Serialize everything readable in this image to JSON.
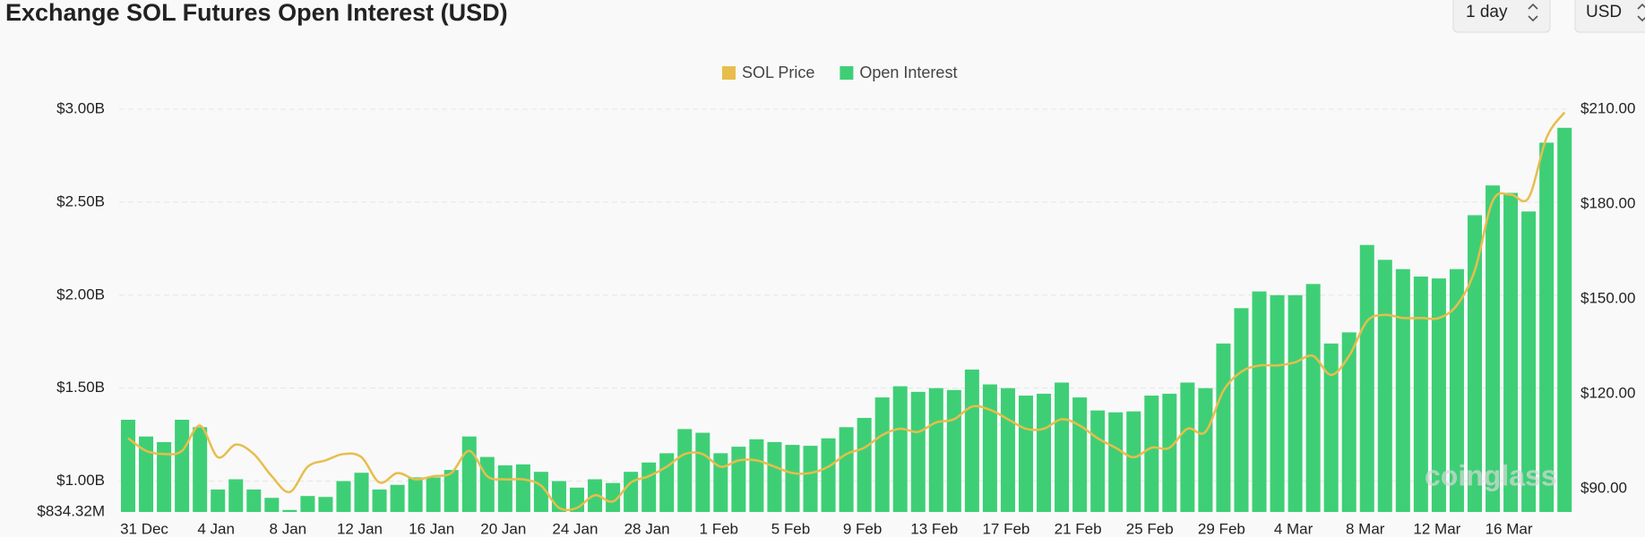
{
  "chart_data": {
    "type": "bar-line",
    "title": "Exchange SOL Futures Open Interest (USD)",
    "controls": [
      "1 day",
      "USD"
    ],
    "watermark": "coinglass",
    "categories": [
      "31 Dec",
      null,
      null,
      null,
      "4 Jan",
      null,
      null,
      null,
      "8 Jan",
      null,
      null,
      null,
      "12 Jan",
      null,
      null,
      null,
      "16 Jan",
      null,
      null,
      null,
      "20 Jan",
      null,
      null,
      null,
      "24 Jan",
      null,
      null,
      null,
      "28 Jan",
      null,
      null,
      null,
      "1 Feb",
      null,
      null,
      null,
      "5 Feb",
      null,
      null,
      null,
      "9 Feb",
      null,
      null,
      null,
      "13 Feb",
      null,
      null,
      null,
      "17 Feb",
      null,
      null,
      null,
      "21 Feb",
      null,
      null,
      null,
      "25 Feb",
      null,
      null,
      null,
      "29 Feb",
      null,
      null,
      null,
      "4 Mar",
      null,
      null,
      null,
      "8 Mar",
      null,
      null,
      null,
      "12 Mar",
      null,
      null,
      null,
      "16 Mar",
      null,
      null,
      null,
      null
    ],
    "series": [
      {
        "name": "SOL Price",
        "color": "#e8bd4c",
        "axis": "y2",
        "type": "line",
        "values": [
          106,
          102,
          101,
          102,
          110,
          100,
          104,
          101,
          94,
          89,
          97,
          99,
          101,
          100,
          92,
          95,
          93,
          94,
          95,
          102,
          94,
          93,
          93,
          91,
          84,
          84,
          88,
          86,
          92,
          94,
          97,
          101,
          101,
          97,
          99,
          99,
          97,
          95,
          95,
          97,
          101,
          103,
          107,
          109,
          108,
          111,
          112,
          116,
          115,
          112,
          109,
          109,
          112,
          110,
          106,
          103,
          100,
          103,
          103,
          109,
          108,
          121,
          127,
          129,
          129,
          130,
          132,
          126,
          132,
          143,
          145,
          144,
          144,
          144,
          148,
          159,
          181,
          183,
          182,
          201,
          209
        ]
      },
      {
        "name": "Open Interest",
        "color": "#3ecf76",
        "type": "bar",
        "values": [
          1330000000,
          1240000000,
          1210000000,
          1330000000,
          1290000000,
          955000000,
          1010000000,
          955000000,
          910000000,
          845000000,
          920000000,
          915000000,
          1000000000,
          1045000000,
          955000000,
          980000000,
          1020000000,
          1020000000,
          1060000000,
          1240000000,
          1130000000,
          1085000000,
          1090000000,
          1050000000,
          1000000000,
          965000000,
          1010000000,
          990000000,
          1050000000,
          1100000000,
          1150000000,
          1280000000,
          1260000000,
          1150000000,
          1185000000,
          1225000000,
          1210000000,
          1195000000,
          1190000000,
          1230000000,
          1290000000,
          1340000000,
          1450000000,
          1510000000,
          1480000000,
          1500000000,
          1490000000,
          1600000000,
          1520000000,
          1500000000,
          1460000000,
          1470000000,
          1530000000,
          1450000000,
          1380000000,
          1370000000,
          1375000000,
          1460000000,
          1470000000,
          1530000000,
          1500000000,
          1740000000,
          1930000000,
          2020000000,
          2000000000,
          2000000000,
          2060000000,
          1740000000,
          1800000000,
          2270000000,
          2190000000,
          2140000000,
          2100000000,
          2090000000,
          2140000000,
          2430000000,
          2590000000,
          2550000000,
          2450000000,
          2820000000,
          2900000000
        ]
      }
    ],
    "ylim": [
      834320000,
      3000000000
    ],
    "yticks": [
      {
        "value": 834320000,
        "label": "$834.32M"
      },
      {
        "value": 1000000000,
        "label": "$1.00B"
      },
      {
        "value": 1500000000,
        "label": "$1.50B"
      },
      {
        "value": 2000000000,
        "label": "$2.00B"
      },
      {
        "value": 2500000000,
        "label": "$2.50B"
      },
      {
        "value": 3000000000,
        "label": "$3.00B"
      }
    ],
    "y2lim": [
      82.7,
      210
    ],
    "y2ticks": [
      {
        "value": 90,
        "label": "$90.00"
      },
      {
        "value": 120,
        "label": "$120.00"
      },
      {
        "value": 150,
        "label": "$150.00"
      },
      {
        "value": 180,
        "label": "$180.00"
      },
      {
        "value": 210,
        "label": "$210.00"
      }
    ],
    "grid": true,
    "legend": "top"
  }
}
